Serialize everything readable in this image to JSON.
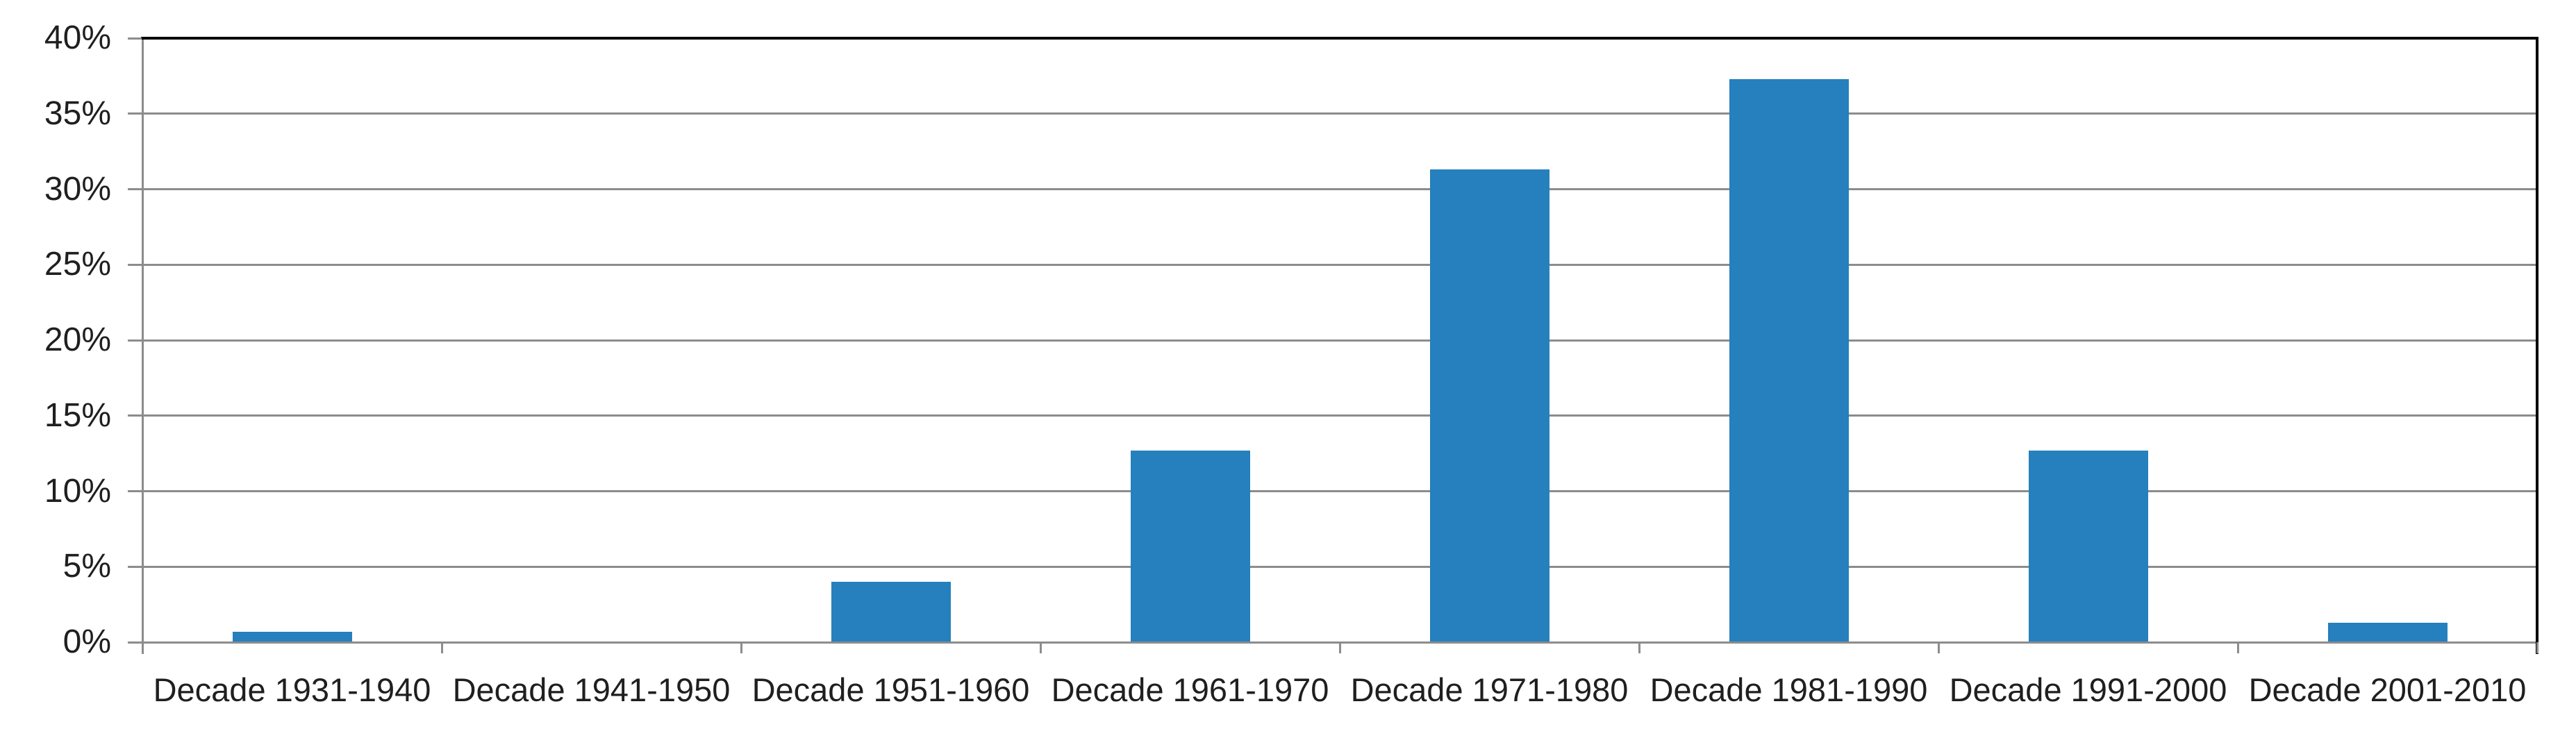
{
  "chart_data": {
    "type": "bar",
    "title": "",
    "xlabel": "",
    "ylabel": "",
    "categories": [
      "Decade 1931-1940",
      "Decade 1941-1950",
      "Decade 1951-1960",
      "Decade 1961-1970",
      "Decade 1971-1980",
      "Decade 1981-1990",
      "Decade 1991-2000",
      "Decade 2001-2010"
    ],
    "values": [
      0.7,
      0,
      4.0,
      12.7,
      31.3,
      37.3,
      12.7,
      1.3
    ],
    "ylim": [
      0,
      40
    ],
    "ytick_step": 5,
    "ytick_labels": [
      "0%",
      "5%",
      "10%",
      "15%",
      "20%",
      "25%",
      "30%",
      "35%",
      "40%"
    ],
    "grid": true,
    "legend": false,
    "colors": {
      "bar": "#2580BD",
      "gridline": "#8C8C8C",
      "axis": "#8C8C8C",
      "plot_border": "#000000",
      "text": "#1F1F1F",
      "background": "#FFFFFF"
    }
  }
}
